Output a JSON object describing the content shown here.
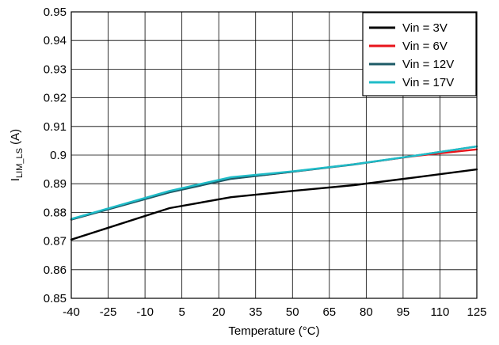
{
  "chart_data": {
    "type": "line",
    "title": "",
    "xlabel": "Temperature (°C)",
    "ylabel": {
      "main": "I",
      "sub": "LIM_LS",
      "unit": " (A)"
    },
    "xlim": [
      -40,
      125
    ],
    "ylim": [
      0.85,
      0.95
    ],
    "xticks": [
      -40,
      -25,
      -10,
      5,
      20,
      35,
      50,
      65,
      80,
      95,
      110,
      125
    ],
    "xtick_labels": [
      "-40",
      "-25",
      "-10",
      "5",
      "20",
      "35",
      "50",
      "65",
      "80",
      "95",
      "110",
      "125"
    ],
    "yticks": [
      0.85,
      0.86,
      0.87,
      0.88,
      0.89,
      0.9,
      0.91,
      0.92,
      0.93,
      0.94,
      0.95
    ],
    "ytick_labels": [
      "0.85",
      "0.86",
      "0.87",
      "0.88",
      "0.89",
      "0.9",
      "0.91",
      "0.92",
      "0.93",
      "0.94",
      "0.95"
    ],
    "grid": true,
    "legend_position": "top-right",
    "series": [
      {
        "name": "Vin = 3V",
        "color": "#000000",
        "x": [
          -40,
          0,
          25,
          50,
          75,
          100,
          125
        ],
        "y": [
          0.8705,
          0.8815,
          0.8853,
          0.8875,
          0.8895,
          0.8922,
          0.895
        ]
      },
      {
        "name": "Vin = 6V",
        "color": "#e8141b",
        "x": [
          -40,
          0,
          25,
          50,
          75,
          100,
          125
        ],
        "y": [
          0.8775,
          0.8872,
          0.8918,
          0.8942,
          0.8968,
          0.8997,
          0.902
        ]
      },
      {
        "name": "Vin = 12V",
        "color": "#1d5a66",
        "x": [
          -40,
          0,
          25,
          50,
          75,
          100,
          125
        ],
        "y": [
          0.8775,
          0.887,
          0.8917,
          0.8942,
          0.8967,
          0.8998,
          0.903
        ]
      },
      {
        "name": "Vin = 17V",
        "color": "#1fbcc8",
        "x": [
          -40,
          0,
          25,
          50,
          75,
          100,
          125
        ],
        "y": [
          0.8777,
          0.8875,
          0.8923,
          0.8943,
          0.8968,
          0.8998,
          0.903
        ]
      }
    ]
  }
}
